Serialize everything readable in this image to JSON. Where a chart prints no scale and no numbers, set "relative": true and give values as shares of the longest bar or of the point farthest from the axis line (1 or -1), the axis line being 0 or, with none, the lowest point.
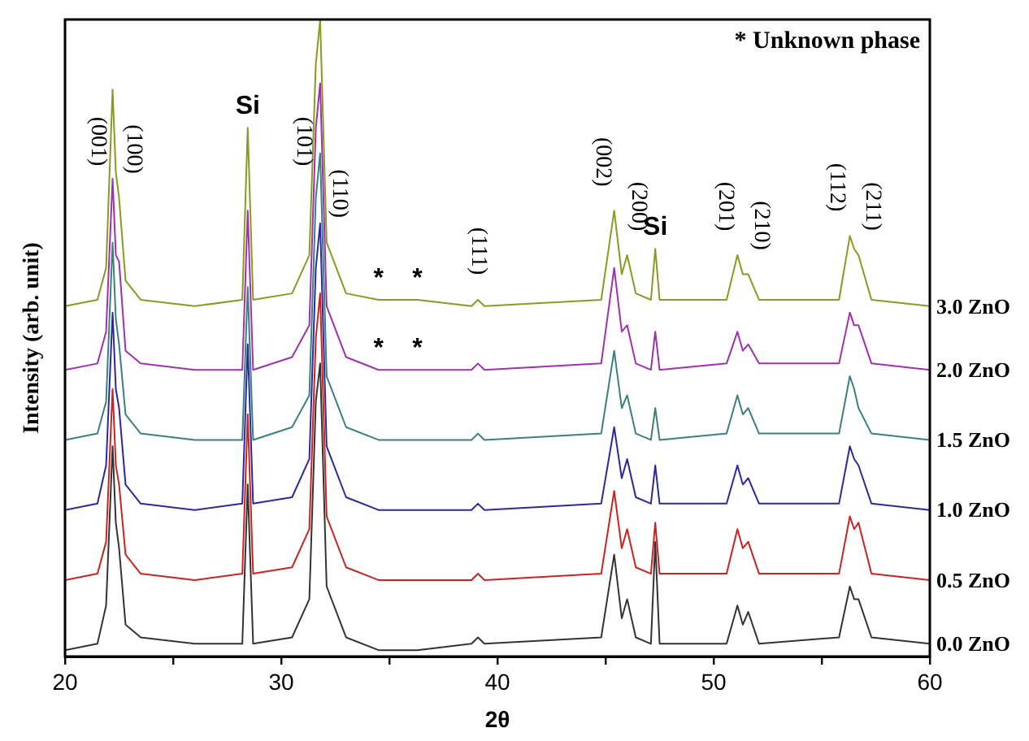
{
  "chart_data": {
    "type": "line",
    "relative": true,
    "xlabel": "2θ",
    "ylabel": "Intensity (arb. unit)",
    "xlim": [
      20,
      60
    ],
    "xticks": [
      20,
      {
        "value": 25,
        "label": null
      },
      30,
      {
        "value": 35,
        "label": null
      },
      40,
      {
        "value": 45,
        "label": null
      },
      50,
      {
        "value": 55,
        "label": null
      },
      60
    ],
    "grid": false,
    "legend": false,
    "marker": "none",
    "line_style": "solid",
    "x": [
      20,
      21.5,
      21.9,
      22.2,
      22.35,
      22.5,
      22.8,
      23.5,
      26,
      28.2,
      28.45,
      28.7,
      30.5,
      31.3,
      31.6,
      31.8,
      32.1,
      33,
      34.5,
      36.3,
      38.8,
      39.1,
      39.4,
      44.8,
      45.4,
      45.75,
      46.0,
      46.4,
      47.1,
      47.3,
      47.5,
      50.6,
      51.1,
      51.35,
      51.6,
      52.1,
      55.8,
      56.3,
      56.5,
      56.7,
      57.3,
      60
    ],
    "series": [
      {
        "name": "0.0 ZnO",
        "color": "#333333",
        "values": [
          0.01,
          0.02,
          0.08,
          0.33,
          0.21,
          0.17,
          0.05,
          0.03,
          0.02,
          0.02,
          0.27,
          0.02,
          0.03,
          0.09,
          0.4,
          0.46,
          0.11,
          0.03,
          0.01,
          0.01,
          0.02,
          0.03,
          0.02,
          0.03,
          0.16,
          0.06,
          0.09,
          0.03,
          0.02,
          0.18,
          0.02,
          0.02,
          0.08,
          0.05,
          0.07,
          0.02,
          0.03,
          0.11,
          0.09,
          0.09,
          0.03,
          0.02
        ]
      },
      {
        "name": "0.5 ZnO",
        "color": "#cc2222",
        "values": [
          0.12,
          0.13,
          0.18,
          0.42,
          0.3,
          0.27,
          0.16,
          0.13,
          0.12,
          0.13,
          0.38,
          0.13,
          0.14,
          0.2,
          0.5,
          0.57,
          0.22,
          0.14,
          0.12,
          0.12,
          0.12,
          0.13,
          0.12,
          0.13,
          0.26,
          0.17,
          0.2,
          0.14,
          0.13,
          0.21,
          0.13,
          0.13,
          0.2,
          0.17,
          0.18,
          0.13,
          0.13,
          0.22,
          0.2,
          0.21,
          0.13,
          0.12
        ]
      },
      {
        "name": "1.0 ZnO",
        "color": "#2a2a9c",
        "values": [
          0.23,
          0.24,
          0.3,
          0.54,
          0.42,
          0.39,
          0.27,
          0.24,
          0.23,
          0.24,
          0.49,
          0.24,
          0.25,
          0.31,
          0.61,
          0.68,
          0.33,
          0.25,
          0.23,
          0.23,
          0.23,
          0.24,
          0.23,
          0.24,
          0.36,
          0.28,
          0.31,
          0.25,
          0.24,
          0.3,
          0.24,
          0.24,
          0.3,
          0.27,
          0.28,
          0.24,
          0.24,
          0.33,
          0.31,
          0.3,
          0.24,
          0.23
        ]
      },
      {
        "name": "1.5 ZnO",
        "color": "#3a8080",
        "values": [
          0.34,
          0.35,
          0.4,
          0.65,
          0.53,
          0.49,
          0.38,
          0.35,
          0.34,
          0.34,
          0.58,
          0.34,
          0.36,
          0.41,
          0.72,
          0.79,
          0.44,
          0.36,
          0.34,
          0.34,
          0.34,
          0.35,
          0.34,
          0.35,
          0.48,
          0.39,
          0.41,
          0.35,
          0.34,
          0.39,
          0.34,
          0.35,
          0.41,
          0.38,
          0.39,
          0.35,
          0.35,
          0.44,
          0.42,
          0.39,
          0.35,
          0.34
        ]
      },
      {
        "name": "2.0 ZnO",
        "color": "#a030b0",
        "values": [
          0.45,
          0.46,
          0.51,
          0.75,
          0.63,
          0.62,
          0.48,
          0.46,
          0.45,
          0.45,
          0.7,
          0.45,
          0.47,
          0.52,
          0.83,
          0.9,
          0.55,
          0.47,
          0.45,
          0.45,
          0.45,
          0.46,
          0.45,
          0.46,
          0.61,
          0.51,
          0.52,
          0.46,
          0.45,
          0.51,
          0.45,
          0.46,
          0.51,
          0.48,
          0.49,
          0.46,
          0.46,
          0.54,
          0.52,
          0.52,
          0.46,
          0.45
        ]
      },
      {
        "name": "3.0 ZnO",
        "color": "#8a9a20",
        "values": [
          0.55,
          0.56,
          0.61,
          0.89,
          0.76,
          0.72,
          0.59,
          0.56,
          0.55,
          0.56,
          0.83,
          0.56,
          0.57,
          0.63,
          0.93,
          1,
          0.65,
          0.57,
          0.56,
          0.56,
          0.55,
          0.56,
          0.55,
          0.56,
          0.7,
          0.6,
          0.63,
          0.57,
          0.56,
          0.64,
          0.56,
          0.56,
          0.63,
          0.6,
          0.6,
          0.56,
          0.56,
          0.66,
          0.64,
          0.63,
          0.56,
          0.55
        ]
      }
    ],
    "annotations": [
      {
        "text": "(001)",
        "x": 22.2,
        "y": 0.89
      },
      {
        "text": "(100)",
        "x": 22.5,
        "y": 0.72
      },
      {
        "text": "Si",
        "x": 28.45,
        "y": 0.83
      },
      {
        "text": "(101)",
        "x": 31.6,
        "y": 0.93
      },
      {
        "text": "(110)",
        "x": 32.1,
        "y": 0.65
      },
      {
        "text": "*",
        "x": 34.5,
        "y": 0.56
      },
      {
        "text": "*",
        "x": 36.3,
        "y": 0.56
      },
      {
        "text": "*",
        "x": 34.5,
        "y": 0.45
      },
      {
        "text": "*",
        "x": 36.3,
        "y": 0.45
      },
      {
        "text": "(111)",
        "x": 39.1,
        "y": 0.56
      },
      {
        "text": "(002)",
        "x": 45.4,
        "y": 0.7
      },
      {
        "text": "(200)",
        "x": 46.0,
        "y": 0.63
      },
      {
        "text": "Si",
        "x": 47.3,
        "y": 0.64
      },
      {
        "text": "(201)",
        "x": 51.1,
        "y": 0.63
      },
      {
        "text": "(210)",
        "x": 51.6,
        "y": 0.6
      },
      {
        "text": "(112)",
        "x": 56.3,
        "y": 0.66
      },
      {
        "text": "(211)",
        "x": 56.7,
        "y": 0.63
      },
      "* Unknown phase"
    ]
  }
}
